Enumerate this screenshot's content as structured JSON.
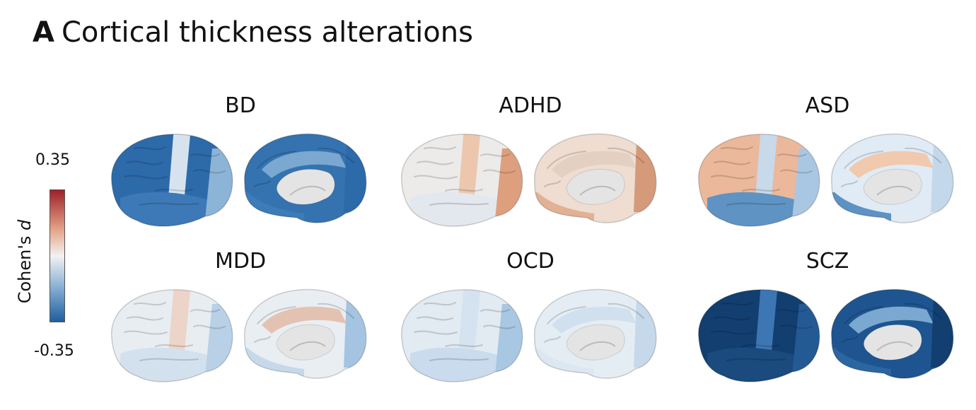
{
  "panel": {
    "letter": "A",
    "title": "Cortical thickness alterations"
  },
  "colorbar": {
    "label_text": "Cohen's ",
    "label_italic": "d",
    "max_label": "0.35",
    "min_label": "-0.35",
    "colors": {
      "high": "#a0202a",
      "mid_high": "#e2a488",
      "mid": "#f2f2f2",
      "mid_low": "#8fb5d7",
      "low": "#1f5f9e"
    }
  },
  "conditions": [
    {
      "name": "BD",
      "lateral_colors": {
        "base": "#2d6aaa",
        "band": "#d6e3ef",
        "temporal": "#3d79b6",
        "occipital": "#8cb4d6"
      },
      "medial_colors": {
        "base": "#3473b0",
        "band": "#7aa8d0",
        "temporal": "#3e7cb8",
        "occipital": "#2d6aaa"
      }
    },
    {
      "name": "ADHD",
      "lateral_colors": {
        "base": "#ecebea",
        "band": "#ecc7ae",
        "temporal": "#e3e7ee",
        "occipital": "#dd9f7e"
      },
      "medial_colors": {
        "base": "#eeddd0",
        "band": "#e3d0c3",
        "temporal": "#e2b194",
        "occipital": "#d59a7a"
      }
    },
    {
      "name": "ASD",
      "lateral_colors": {
        "base": "#ebb89b",
        "band": "#c8d9ea",
        "temporal": "#5e93c4",
        "occipital": "#a9c7e2"
      },
      "medial_colors": {
        "base": "#e0ebf5",
        "band": "#f0c9ae",
        "temporal": "#5d92c3",
        "occipital": "#c4d8eb"
      }
    },
    {
      "name": "MDD",
      "lateral_colors": {
        "base": "#e8edf2",
        "band": "#ecd4c8",
        "temporal": "#d3e1ee",
        "occipital": "#b9d1e7"
      },
      "medial_colors": {
        "base": "#e9eef3",
        "band": "#e3c2b1",
        "temporal": "#c6d9ea",
        "occipital": "#a5c4e1"
      }
    },
    {
      "name": "OCD",
      "lateral_colors": {
        "base": "#e2eaf2",
        "band": "#d4e3ef",
        "temporal": "#c9dbec",
        "occipital": "#a8c7e2"
      },
      "medial_colors": {
        "base": "#e5edf4",
        "band": "#d0e0ee",
        "temporal": "#dde7f1",
        "occipital": "#c6d9ea"
      }
    },
    {
      "name": "SCZ",
      "lateral_colors": {
        "base": "#123f70",
        "band": "#3c77b3",
        "temporal": "#1a4a7e",
        "occipital": "#245a94"
      },
      "medial_colors": {
        "base": "#1e5590",
        "band": "#7aa8d0",
        "temporal": "#2b66a2",
        "occipital": "#123f70"
      }
    }
  ]
}
